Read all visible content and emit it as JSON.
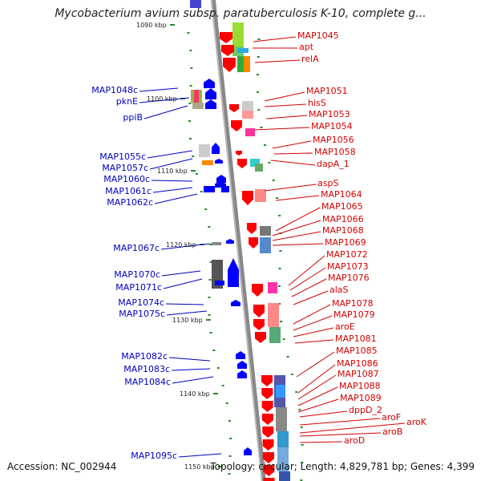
{
  "title": "Mycobacterium avium subsp. paratuberculosis K-10, complete g...",
  "footer": {
    "accession": "Accession: NC_002944",
    "stats": "Topology: circular; Length: 4,829,781 bp; Genes: 4,399"
  },
  "scale_labels": [
    "1090 kbp",
    "1100 kbp",
    "1110 kbp",
    "1120 kbp",
    "1130 kbp",
    "1140 kbp",
    "1150 kbp"
  ],
  "right_genes": [
    "MAP1045",
    "apt",
    "relA",
    "MAP1051",
    "hisS",
    "MAP1053",
    "MAP1054",
    "MAP1056",
    "MAP1058",
    "dapA_1",
    "aspS",
    "MAP1064",
    "MAP1065",
    "MAP1066",
    "MAP1068",
    "MAP1069",
    "MAP1072",
    "MAP1073",
    "MAP1076",
    "alaS",
    "MAP1078",
    "MAP1079",
    "aroE",
    "MAP1081",
    "MAP1085",
    "MAP1086",
    "MAP1087",
    "MAP1088",
    "MAP1089",
    "dppD_2",
    "aroF",
    "aroK",
    "aroB",
    "aroD"
  ],
  "left_genes": [
    "MAP1048c",
    "pknE",
    "ppiB",
    "MAP1055c",
    "MAP1057c",
    "MAP1060c",
    "MAP1061c",
    "MAP1062c",
    "MAP1067c",
    "MAP1070c",
    "MAP1071c",
    "MAP1074c",
    "MAP1075c",
    "MAP1082c",
    "MAP1083c",
    "MAP1084c",
    "MAP1095c"
  ],
  "colors": {
    "forward_gene": "#ff0000",
    "reverse_gene": "#0000ff",
    "right_label": "#d40000",
    "left_label": "#0000c0",
    "backbone": "#888888",
    "tick": "#2a8a2a"
  }
}
